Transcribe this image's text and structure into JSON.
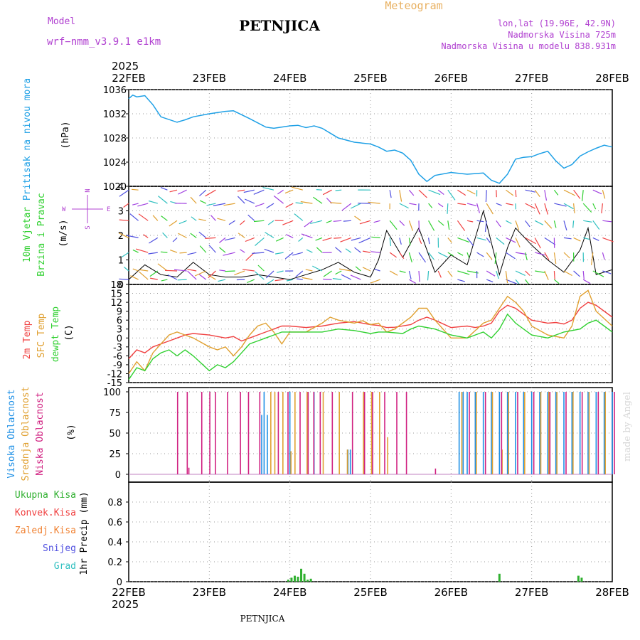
{
  "header": {
    "model_label": "Model",
    "model_name": "wrf−nmm_v3.9.1  e1km",
    "station": "PETNJICA",
    "product": "Meteogram",
    "coords": "lon,lat (19.96E, 42.9N)",
    "altitude": "Nadmorska Visina 725m",
    "model_altitude": "Nadmorska Visina u modelu 838.931m",
    "footer_station": "PETNJICA",
    "credit": "made by Angel"
  },
  "colors": {
    "pressure": "#1ea0e6",
    "temp2m": "#f04040",
    "sfc": "#e0a030",
    "dew": "#30d030",
    "high": "#1e90e6",
    "mid": "#e0a030",
    "low": "#d02080",
    "precip": "#30b030",
    "header_purple": "#b040d0",
    "meteogram": "#e8b060"
  },
  "chart_data": [
    {
      "type": "line",
      "title": "Pritisak na nivou mora",
      "ylabel": "(hPa)",
      "ylim": [
        1020,
        1036
      ],
      "yticks": [
        "1036",
        "1032",
        "1028",
        "1024",
        "1020"
      ],
      "x_top": [
        "22FEB",
        "23FEB",
        "24FEB",
        "25FEB",
        "26FEB",
        "27FEB",
        "28FEB"
      ],
      "year_top": "2025",
      "series": [
        {
          "x": [
            0,
            0.05,
            0.1,
            0.2,
            0.3,
            0.4,
            0.6,
            0.7,
            0.8,
            1.0,
            1.2,
            1.3,
            1.5,
            1.7,
            1.8,
            2.0,
            2.1,
            2.2,
            2.3,
            2.4,
            2.5,
            2.6,
            2.8,
            3.0,
            3.1,
            3.2,
            3.3,
            3.4,
            3.5,
            3.6,
            3.7,
            3.8,
            4.0,
            4.2,
            4.4,
            4.5,
            4.6,
            4.7,
            4.8,
            4.9,
            5.0,
            5.1,
            5.2,
            5.3,
            5.4,
            5.5,
            5.6,
            5.7,
            5.8,
            5.9,
            6.0
          ],
          "values": [
            1034.5,
            1035.1,
            1034.8,
            1035.0,
            1033.5,
            1031.5,
            1030.6,
            1031.0,
            1031.5,
            1032.0,
            1032.4,
            1032.5,
            1031.2,
            1029.8,
            1029.6,
            1030.0,
            1030.1,
            1029.7,
            1030.0,
            1029.6,
            1028.8,
            1028.0,
            1027.3,
            1027.0,
            1026.5,
            1025.8,
            1026.0,
            1025.5,
            1024.3,
            1022.0,
            1020.8,
            1021.8,
            1022.3,
            1022.0,
            1022.2,
            1021.0,
            1020.5,
            1022.0,
            1024.5,
            1024.8,
            1024.9,
            1025.4,
            1025.8,
            1024.2,
            1023.0,
            1023.6,
            1025.0,
            1025.7,
            1026.3,
            1026.8,
            1026.5
          ]
        }
      ]
    },
    {
      "type": "scatter",
      "title": "10m Vjetar",
      "subtitle": "Brzina i Pravac",
      "ylabel": "(m/s)",
      "ylim": [
        0,
        4
      ],
      "yticks": [
        "4",
        "3",
        "2",
        "1",
        "0"
      ],
      "compass": {
        "n": "N",
        "w": "W",
        "e": "E",
        "s": "S"
      },
      "series": [
        {
          "x": [
            0,
            0.2,
            0.4,
            0.6,
            0.8,
            1.0,
            1.2,
            1.4,
            1.6,
            1.8,
            2.0,
            2.2,
            2.4,
            2.6,
            2.8,
            3.0,
            3.1,
            3.2,
            3.4,
            3.6,
            3.8,
            4.0,
            4.2,
            4.4,
            4.6,
            4.7,
            4.8,
            5.0,
            5.2,
            5.4,
            5.6,
            5.7,
            5.8,
            6.0
          ],
          "values": [
            0.2,
            0.8,
            0.4,
            0.3,
            0.9,
            0.4,
            0.3,
            0.3,
            0.4,
            0.3,
            0.2,
            0.4,
            0.6,
            0.9,
            0.5,
            0.3,
            1.0,
            2.2,
            1.1,
            2.3,
            0.5,
            1.2,
            0.8,
            3.0,
            0.4,
            1.5,
            2.3,
            1.6,
            1.0,
            0.5,
            1.4,
            2.3,
            0.4,
            0.6
          ]
        }
      ]
    },
    {
      "type": "line",
      "title_red": "2m Temp",
      "title_orange": "SFC Temp",
      "title_green": "dewpt Temp",
      "ylabel": "(C)",
      "ylim": [
        -15,
        18
      ],
      "yticks": [
        "18",
        "15",
        "12",
        "9",
        "6",
        "3",
        "0",
        "-3",
        "-6",
        "-9",
        "-12",
        "-15"
      ],
      "series": [
        {
          "name": "2m Temp",
          "x": [
            0,
            0.1,
            0.2,
            0.3,
            0.4,
            0.5,
            0.6,
            0.7,
            0.8,
            1.0,
            1.2,
            1.3,
            1.4,
            1.5,
            1.6,
            1.7,
            1.8,
            1.9,
            2.0,
            2.2,
            2.4,
            2.6,
            2.8,
            2.9,
            3.0,
            3.1,
            3.2,
            3.3,
            3.5,
            3.6,
            3.7,
            3.8,
            4.0,
            4.2,
            4.3,
            4.4,
            4.5,
            4.6,
            4.7,
            4.8,
            5.0,
            5.2,
            5.3,
            5.4,
            5.5,
            5.6,
            5.7,
            5.8,
            6.0
          ],
          "values": [
            -7,
            -4,
            -5,
            -3,
            -2,
            -1,
            0,
            1,
            1.5,
            1,
            0,
            0.5,
            -1,
            0,
            1,
            2,
            3,
            4,
            4,
            3.5,
            4,
            5,
            5.5,
            5,
            4.5,
            4.2,
            3.5,
            3.6,
            4.5,
            6,
            7,
            6,
            3.5,
            4,
            3.5,
            4,
            5,
            9,
            11,
            10,
            6,
            5,
            5.2,
            4.7,
            6,
            10,
            12,
            11,
            7
          ]
        },
        {
          "name": "SFC Temp",
          "x": [
            0,
            0.1,
            0.2,
            0.3,
            0.4,
            0.5,
            0.6,
            0.7,
            0.8,
            1.0,
            1.1,
            1.2,
            1.3,
            1.4,
            1.5,
            1.6,
            1.7,
            1.8,
            1.9,
            2.0,
            2.2,
            2.4,
            2.5,
            2.6,
            2.8,
            2.9,
            3.0,
            3.1,
            3.2,
            3.3,
            3.5,
            3.6,
            3.7,
            3.8,
            4.0,
            4.2,
            4.4,
            4.5,
            4.6,
            4.7,
            4.8,
            4.9,
            5.0,
            5.2,
            5.4,
            5.5,
            5.6,
            5.7,
            5.8,
            6.0
          ],
          "values": [
            -12,
            -8,
            -11,
            -5,
            -2,
            1,
            2,
            1,
            0,
            -3,
            -4,
            -3,
            -6,
            -3,
            1,
            4,
            5,
            2,
            -2,
            2,
            2,
            5,
            7,
            6,
            5,
            5.8,
            4.5,
            5,
            2,
            3,
            7,
            10,
            10,
            6,
            0,
            0,
            5,
            6,
            10,
            14,
            12,
            9,
            4,
            1,
            0,
            4,
            14,
            16,
            9,
            4
          ]
        },
        {
          "name": "dewpt Temp",
          "x": [
            0,
            0.1,
            0.2,
            0.3,
            0.4,
            0.5,
            0.6,
            0.7,
            0.8,
            1.0,
            1.1,
            1.2,
            1.3,
            1.4,
            1.5,
            1.6,
            1.7,
            1.8,
            1.9,
            2.0,
            2.2,
            2.4,
            2.6,
            2.8,
            3.0,
            3.1,
            3.2,
            3.4,
            3.5,
            3.6,
            3.8,
            4.0,
            4.2,
            4.4,
            4.5,
            4.6,
            4.7,
            4.8,
            5.0,
            5.2,
            5.4,
            5.6,
            5.7,
            5.8,
            5.9,
            6.0
          ],
          "values": [
            -14,
            -10,
            -11,
            -7,
            -5,
            -4,
            -6,
            -4,
            -6,
            -11,
            -9,
            -10,
            -8,
            -5,
            -2,
            -1,
            0,
            1,
            2,
            2,
            2,
            2,
            3,
            2.5,
            1.5,
            2,
            2,
            1.5,
            3,
            4,
            3,
            1,
            0,
            2,
            0,
            3,
            8,
            5,
            1,
            0,
            2,
            3,
            5,
            6,
            4,
            2
          ]
        }
      ]
    },
    {
      "type": "bar",
      "title_blue": "Visoka Oblacnost",
      "title_orange": "Srednja Oblacnost",
      "title_magenta": "Niska Oblacnost",
      "ylabel": "(%)",
      "ylim": [
        0,
        100
      ],
      "yticks": [
        "100",
        "75",
        "50",
        "25",
        "0"
      ],
      "series": [
        {
          "name": "Visoka Oblacnost",
          "x": [
            1.65,
            1.68,
            1.72,
            2.0,
            2.3,
            2.72,
            2.75,
            4.1,
            4.15,
            4.2,
            4.3,
            4.4,
            4.5,
            4.6,
            4.7,
            4.8,
            4.9,
            5.0,
            5.1,
            5.2,
            5.3,
            5.4,
            5.5,
            5.6,
            5.7,
            5.8,
            5.9,
            6.0
          ],
          "values": [
            72,
            100,
            72,
            100,
            100,
            30,
            30,
            100,
            100,
            100,
            100,
            100,
            100,
            100,
            100,
            100,
            100,
            100,
            100,
            100,
            100,
            100,
            100,
            100,
            100,
            100,
            100,
            100
          ]
        },
        {
          "name": "Srednja Oblacnost",
          "x": [
            1.75,
            1.8,
            1.9,
            2.0,
            2.05,
            2.2,
            2.4,
            2.6,
            2.7,
            2.9,
            3.0,
            3.1,
            3.2,
            4.12,
            4.3,
            4.5,
            4.62,
            4.7,
            4.9,
            5.1,
            5.2,
            5.3,
            5.5,
            5.7,
            5.9
          ],
          "values": [
            100,
            100,
            100,
            28,
            100,
            100,
            100,
            100,
            30,
            100,
            100,
            100,
            45,
            100,
            100,
            100,
            30,
            100,
            100,
            100,
            100,
            100,
            100,
            100,
            100
          ]
        },
        {
          "name": "Niska Oblacnost",
          "x": [
            0.58,
            0.7,
            0.72,
            0.88,
            0.98,
            1.05,
            1.2,
            1.36,
            1.46,
            1.6,
            1.83,
            1.95,
            2.1,
            2.2,
            2.27,
            2.35,
            2.5,
            2.75,
            2.9,
            3.0,
            3.15,
            3.3,
            3.42,
            3.78,
            4.2,
            4.4,
            4.6,
            4.8,
            5.0,
            5.2,
            5.4,
            5.6,
            5.8,
            6.0
          ],
          "values": [
            100,
            100,
            8,
            100,
            100,
            100,
            100,
            100,
            100,
            100,
            100,
            100,
            100,
            100,
            100,
            100,
            100,
            100,
            100,
            100,
            100,
            100,
            100,
            7,
            100,
            100,
            100,
            100,
            100,
            100,
            100,
            100,
            100,
            100
          ]
        }
      ]
    },
    {
      "type": "bar",
      "labels": [
        "Ukupna Kisa",
        "Konvek.Kisa",
        "Zaledj.Kisa",
        "Snijeg",
        "Grad"
      ],
      "ylabel": "1hr Precip (mm)",
      "ylim": [
        0,
        1
      ],
      "yticks": [
        "0.8",
        "0.6",
        "0.4",
        "0.2",
        "0"
      ],
      "categories": [
        "22FEB",
        "23FEB",
        "24FEB",
        "25FEB",
        "26FEB",
        "27FEB",
        "28FEB"
      ],
      "year_bottom": "2025",
      "series": [
        {
          "name": "Ukupna Kisa",
          "x": [
            1.98,
            2.02,
            2.06,
            2.1,
            2.14,
            2.18,
            2.22,
            2.26,
            4.6,
            5.58,
            5.62
          ],
          "values": [
            0.02,
            0.04,
            0.06,
            0.05,
            0.13,
            0.08,
            0.02,
            0.03,
            0.08,
            0.06,
            0.04
          ]
        }
      ]
    }
  ]
}
